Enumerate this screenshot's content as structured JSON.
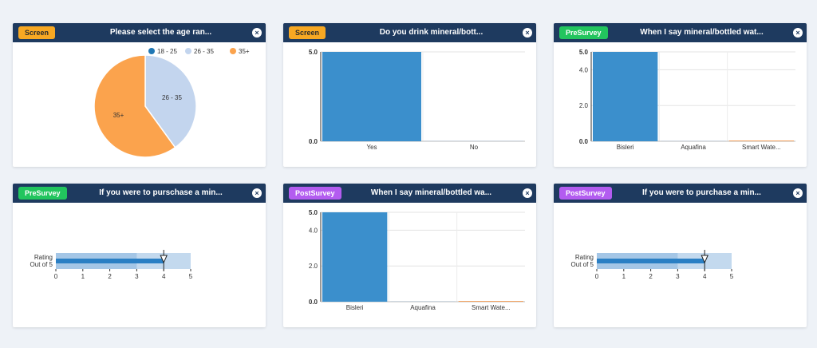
{
  "colors": {
    "header_bg": "#1e3a5f",
    "bar_blue": "#3b8fcc",
    "bullet_light": "#c3d9ee",
    "bullet_mid": "#a4c6e6",
    "bullet_bar": "#2a7fc4",
    "pie_18_25": "#1f77b4",
    "pie_26_35": "#c3d5ee",
    "pie_35": "#fba34d",
    "screen_badge": "#f7a823",
    "presurvey_badge": "#22c55e",
    "postsurvey_badge": "#b35cf0"
  },
  "cards": [
    {
      "badge": "Screen",
      "title": "Please select the age ran...",
      "close_icon": "×",
      "chart_data": {
        "type": "pie",
        "legend": [
          "18 - 25",
          "26 - 35",
          "35+"
        ],
        "slices": [
          {
            "label": "18 - 25",
            "value": 0
          },
          {
            "label": "26 - 35",
            "value": 40
          },
          {
            "label": "35+",
            "value": 60
          }
        ],
        "legend_position": "top-right"
      }
    },
    {
      "badge": "Screen",
      "title": "Do you drink mineral/bott...",
      "close_icon": "×",
      "chart_data": {
        "type": "bar",
        "categories": [
          "Yes",
          "No"
        ],
        "values": [
          5,
          0
        ],
        "ylim": [
          0,
          5
        ],
        "yticks": [
          "0.0",
          "5.0"
        ],
        "grid": true
      }
    },
    {
      "badge": "PreSurvey",
      "title": "When I say mineral/bottled wat...",
      "close_icon": "×",
      "chart_data": {
        "type": "bar",
        "categories": [
          "Bisleri",
          "Aquafina",
          "Smart Wate..."
        ],
        "values": [
          5,
          0,
          0
        ],
        "ylim": [
          0,
          5
        ],
        "yticks": [
          "0.0",
          "2.0",
          "4.0",
          "5.0"
        ],
        "grid": true
      }
    },
    {
      "badge": "PreSurvey",
      "title": "If you were to purschase a min...",
      "close_icon": "×",
      "chart_data": {
        "type": "bullet",
        "label_line1": "Rating",
        "label_line2": "Out of 5",
        "value": 4,
        "marker": 4,
        "range": [
          0,
          5
        ],
        "bands": [
          3,
          5
        ],
        "ticks": [
          "0",
          "1",
          "2",
          "3",
          "4",
          "5"
        ]
      }
    },
    {
      "badge": "PostSurvey",
      "title": "When I say mineral/bottled wa...",
      "close_icon": "×",
      "chart_data": {
        "type": "bar",
        "categories": [
          "Bisleri",
          "Aquafina",
          "Smart Wate..."
        ],
        "values": [
          5,
          0,
          0
        ],
        "ylim": [
          0,
          5
        ],
        "yticks": [
          "0.0",
          "2.0",
          "4.0",
          "5.0"
        ],
        "grid": true
      }
    },
    {
      "badge": "PostSurvey",
      "title": "If you were to purchase a min...",
      "close_icon": "×",
      "chart_data": {
        "type": "bullet",
        "label_line1": "Rating",
        "label_line2": "Out of 5",
        "value": 4,
        "marker": 4,
        "range": [
          0,
          5
        ],
        "bands": [
          3,
          5
        ],
        "ticks": [
          "0",
          "1",
          "2",
          "3",
          "4",
          "5"
        ]
      }
    }
  ]
}
